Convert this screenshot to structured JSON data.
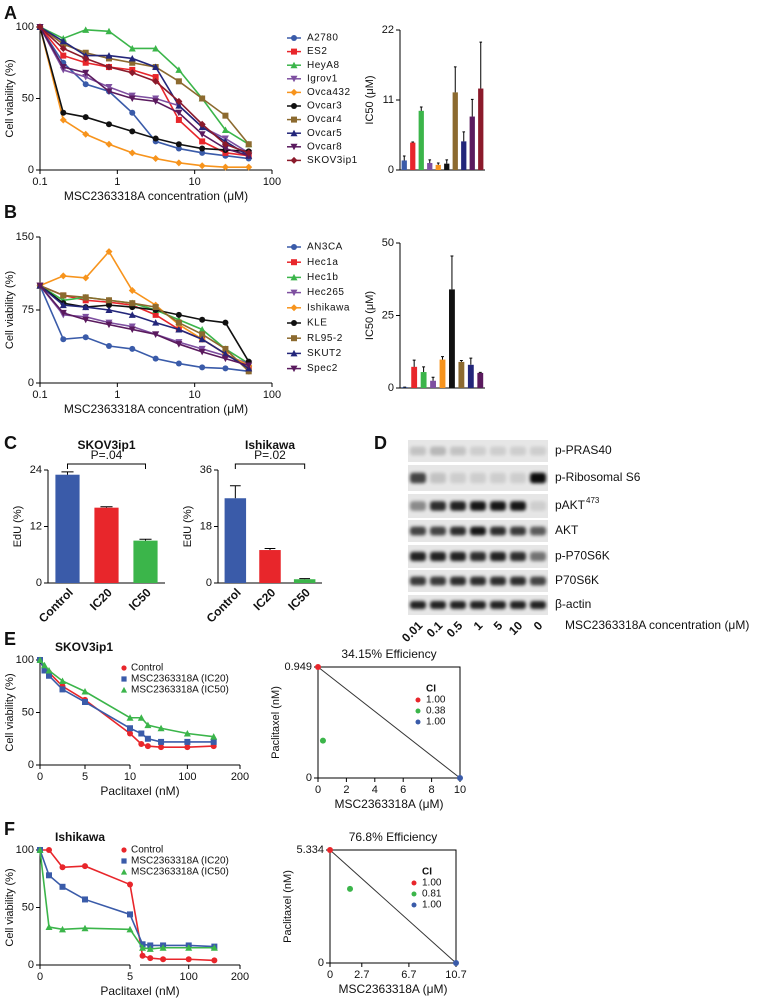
{
  "panel_labels": [
    "A",
    "B",
    "C",
    "D",
    "E",
    "F"
  ],
  "chart_data": [
    {
      "type": "line",
      "xscale": "log",
      "xlabel": "MSC2363318A concentration (μM)",
      "ylabel": "Cell viability (%)",
      "xlim": [
        0.1,
        100
      ],
      "xticks": [
        0.1,
        1,
        10,
        100
      ],
      "ylim": [
        0,
        100
      ],
      "yticks": [
        0,
        50,
        100
      ],
      "legend": "right",
      "x": [
        0.1,
        0.2,
        0.39,
        0.78,
        1.56,
        3.13,
        6.25,
        12.5,
        25,
        50
      ],
      "series": [
        {
          "name": "A2780",
          "color": "#3a5ba9",
          "marker": "circle",
          "values": [
            100,
            75,
            60,
            55,
            40,
            20,
            15,
            12,
            10,
            8
          ]
        },
        {
          "name": "ES2",
          "color": "#e8262b",
          "marker": "square",
          "values": [
            100,
            80,
            75,
            72,
            70,
            65,
            35,
            20,
            12,
            10
          ]
        },
        {
          "name": "HeyA8",
          "color": "#3bb54a",
          "marker": "triangle",
          "values": [
            100,
            92,
            98,
            97,
            85,
            85,
            70,
            50,
            28,
            18
          ]
        },
        {
          "name": "Igrov1",
          "color": "#7e4fa0",
          "marker": "triangle-down",
          "values": [
            100,
            70,
            65,
            58,
            52,
            50,
            45,
            30,
            22,
            12
          ]
        },
        {
          "name": "Ovca432",
          "color": "#f7941d",
          "marker": "diamond",
          "values": [
            100,
            35,
            25,
            18,
            12,
            8,
            5,
            3,
            2,
            2
          ]
        },
        {
          "name": "Ovcar3",
          "color": "#111111",
          "marker": "circle",
          "values": [
            100,
            40,
            37,
            32,
            27,
            22,
            18,
            15,
            14,
            13
          ]
        },
        {
          "name": "Ovcar4",
          "color": "#8c6a2f",
          "marker": "square",
          "values": [
            100,
            88,
            82,
            78,
            75,
            72,
            62,
            50,
            38,
            18
          ]
        },
        {
          "name": "Ovcar5",
          "color": "#23267a",
          "marker": "triangle",
          "values": [
            100,
            90,
            80,
            80,
            78,
            72,
            45,
            30,
            20,
            10
          ]
        },
        {
          "name": "Ovcar8",
          "color": "#5a1a5e",
          "marker": "triangle-down",
          "values": [
            100,
            72,
            68,
            55,
            50,
            48,
            40,
            25,
            15,
            10
          ]
        },
        {
          "name": "SKOV3ip1",
          "color": "#8b1a2b",
          "marker": "diamond",
          "values": [
            100,
            85,
            78,
            72,
            68,
            62,
            48,
            32,
            18,
            12
          ]
        }
      ]
    },
    {
      "type": "bar",
      "ylabel": "IC50 (μM)",
      "ylim": [
        0,
        22
      ],
      "yticks": [
        0,
        11,
        22
      ],
      "values": [
        1.5,
        4.3,
        9.3,
        1.1,
        0.8,
        1.0,
        12.2,
        4.5,
        8.4,
        12.8
      ],
      "errors": [
        0.7,
        0.1,
        0.6,
        0.5,
        0.3,
        0.6,
        4,
        1.5,
        2.7,
        7.3
      ],
      "colors": [
        "#3a5ba9",
        "#e8262b",
        "#3bb54a",
        "#7e4fa0",
        "#f7941d",
        "#111111",
        "#8c6a2f",
        "#23267a",
        "#5a1a5e",
        "#8b1a2b"
      ]
    },
    {
      "type": "line",
      "xscale": "log",
      "xlabel": "MSC2363318A concentration (μM)",
      "ylabel": "Cell viability (%)",
      "xlim": [
        0.1,
        100
      ],
      "xticks": [
        0.1,
        1,
        10,
        100
      ],
      "ylim": [
        0,
        150
      ],
      "yticks": [
        0,
        75,
        150
      ],
      "legend": "right",
      "x": [
        0.1,
        0.2,
        0.39,
        0.78,
        1.56,
        3.13,
        6.25,
        12.5,
        25,
        50
      ],
      "series": [
        {
          "name": "AN3CA",
          "color": "#3a5ba9",
          "marker": "circle",
          "values": [
            100,
            45,
            47,
            38,
            35,
            25,
            20,
            16,
            15,
            12
          ]
        },
        {
          "name": "Hec1a",
          "color": "#e8262b",
          "marker": "square",
          "values": [
            100,
            90,
            85,
            83,
            80,
            70,
            55,
            45,
            30,
            15
          ]
        },
        {
          "name": "Hec1b",
          "color": "#3bb54a",
          "marker": "triangle",
          "values": [
            100,
            85,
            88,
            85,
            82,
            75,
            65,
            55,
            35,
            20
          ]
        },
        {
          "name": "Hec265",
          "color": "#7e4fa0",
          "marker": "triangle-down",
          "values": [
            100,
            70,
            68,
            62,
            58,
            50,
            42,
            35,
            28,
            20
          ]
        },
        {
          "name": "Ishikawa",
          "color": "#f7941d",
          "marker": "diamond",
          "values": [
            100,
            110,
            108,
            135,
            95,
            80,
            60,
            45,
            30,
            18
          ]
        },
        {
          "name": "KLE",
          "color": "#111111",
          "marker": "circle",
          "values": [
            100,
            82,
            78,
            80,
            78,
            75,
            70,
            65,
            62,
            22
          ]
        },
        {
          "name": "RL95-2",
          "color": "#8c6a2f",
          "marker": "square",
          "values": [
            100,
            90,
            88,
            85,
            82,
            78,
            62,
            50,
            35,
            12
          ]
        },
        {
          "name": "SKUT2",
          "color": "#23267a",
          "marker": "triangle",
          "values": [
            100,
            80,
            78,
            75,
            70,
            62,
            55,
            45,
            30,
            15
          ]
        },
        {
          "name": "Spec2",
          "color": "#5a1a5e",
          "marker": "triangle-down",
          "values": [
            100,
            72,
            65,
            60,
            55,
            50,
            40,
            32,
            25,
            18
          ]
        }
      ]
    },
    {
      "type": "bar",
      "ylabel": "IC50 (μM)",
      "ylim": [
        0,
        50
      ],
      "yticks": [
        0,
        25,
        50
      ],
      "values": [
        0.3,
        7.3,
        5.5,
        2.5,
        9.8,
        34,
        9,
        8,
        5.2
      ],
      "errors": [
        0,
        2.3,
        1.8,
        1.2,
        1,
        11.5,
        0.5,
        2.3,
        0.2
      ],
      "colors": [
        "#3a5ba9",
        "#e8262b",
        "#3bb54a",
        "#7e4fa0",
        "#f7941d",
        "#111111",
        "#8c6a2f",
        "#23267a",
        "#5a1a5e"
      ]
    },
    {
      "type": "bar",
      "title": "SKOV3ip1",
      "ylabel": "EdU (%)",
      "ylim": [
        0,
        24
      ],
      "yticks": [
        0,
        12,
        24
      ],
      "categories": [
        "Control",
        "IC20",
        "IC50"
      ],
      "values": [
        23,
        16,
        9
      ],
      "errors": [
        0.6,
        0.2,
        0.3
      ],
      "colors": [
        "#3a5ba9",
        "#e8262b",
        "#3bb54a"
      ],
      "annotation": "P=.04"
    },
    {
      "type": "bar",
      "title": "Ishikawa",
      "ylabel": "EdU (%)",
      "ylim": [
        0,
        36
      ],
      "yticks": [
        0,
        18,
        36
      ],
      "categories": [
        "Control",
        "IC20",
        "IC50"
      ],
      "values": [
        27,
        10.5,
        1.2
      ],
      "errors": [
        4,
        0.5,
        0.2
      ],
      "colors": [
        "#3a5ba9",
        "#e8262b",
        "#3bb54a"
      ],
      "annotation": "P=.02"
    },
    {
      "type": "line",
      "title": "SKOV3ip1",
      "xlabel": "Paclitaxel (nM)",
      "ylabel": "Cell viability (%)",
      "xlim": [
        0,
        200
      ],
      "xbreak": 10,
      "xticks": [
        0,
        5,
        10,
        100,
        200
      ],
      "ylim": [
        0,
        100
      ],
      "yticks": [
        0,
        50,
        100
      ],
      "legend": "top-right",
      "x": [
        0,
        0.5,
        1,
        2.5,
        5,
        10,
        12.5,
        25,
        50,
        100,
        150
      ],
      "series": [
        {
          "name": "Control",
          "color": "#e8262b",
          "marker": "circle",
          "values": [
            100,
            90,
            88,
            75,
            62,
            30,
            20,
            18,
            17,
            17,
            18
          ]
        },
        {
          "name": "MSC2363318A (IC20)",
          "color": "#3a5ba9",
          "marker": "square",
          "values": [
            100,
            90,
            85,
            72,
            60,
            35,
            30,
            25,
            22,
            22,
            22
          ]
        },
        {
          "name": "MSC2363318A (IC50)",
          "color": "#3bb54a",
          "marker": "triangle",
          "values": [
            100,
            95,
            90,
            80,
            70,
            45,
            45,
            38,
            35,
            30,
            27
          ]
        }
      ]
    },
    {
      "type": "scatter",
      "title": "34.15% Efficiency",
      "xlabel": "MSC2363318A (μM)",
      "ylabel": "Paclitaxel (nM)",
      "xlim": [
        0,
        10
      ],
      "xticks": [
        0,
        2,
        4,
        6,
        8,
        10
      ],
      "ylim": [
        0,
        0.949
      ],
      "yticks": [
        0,
        0.949
      ],
      "x": [
        0,
        0.35,
        10
      ],
      "values": [
        0.949,
        0.32,
        0
      ],
      "colors": [
        "#e8262b",
        "#3bb54a",
        "#3a5ba9"
      ],
      "ci": {
        "title": "CI",
        "values": [
          1,
          0.38,
          1
        ],
        "value_labels": [
          "1.00",
          "0.38",
          "1.00"
        ]
      }
    },
    {
      "type": "line",
      "title": "Ishikawa",
      "xlabel": "Paclitaxel (nM)",
      "ylabel": "Cell viability (%)",
      "xlim": [
        0,
        200
      ],
      "xbreak": 5,
      "xticks": [
        0,
        5,
        100,
        200
      ],
      "ylim": [
        0,
        100
      ],
      "yticks": [
        0,
        50,
        100
      ],
      "legend": "top-right",
      "x": [
        0,
        0.5,
        1.25,
        2.5,
        5,
        10,
        25,
        50,
        100,
        150
      ],
      "series": [
        {
          "name": "Control",
          "color": "#e8262b",
          "marker": "circle",
          "values": [
            100,
            100,
            85,
            86,
            70,
            8,
            6,
            5,
            5,
            4
          ]
        },
        {
          "name": "MSC2363318A (IC20)",
          "color": "#3a5ba9",
          "marker": "square",
          "values": [
            100,
            78,
            68,
            57,
            44,
            18,
            17,
            17,
            17,
            16
          ]
        },
        {
          "name": "MSC2363318A (IC50)",
          "color": "#3bb54a",
          "marker": "triangle",
          "values": [
            100,
            33,
            31,
            32,
            31,
            15,
            14,
            15,
            15,
            15
          ]
        }
      ]
    },
    {
      "type": "scatter",
      "title": "76.8% Efficiency",
      "xlabel": "MSC2363318A (μM)",
      "ylabel": "Paclitaxel (nM)",
      "xlim": [
        0,
        10.7
      ],
      "xticks": [
        0,
        2.7,
        6.7,
        10.7
      ],
      "ylim": [
        0,
        5.334
      ],
      "yticks": [
        0,
        5.334
      ],
      "x": [
        0,
        1.7,
        10.7
      ],
      "values": [
        5.334,
        3.5,
        0
      ],
      "colors": [
        "#e8262b",
        "#3bb54a",
        "#3a5ba9"
      ],
      "ci": {
        "title": "CI",
        "values": [
          1,
          0.81,
          1
        ],
        "value_labels": [
          "1.00",
          "0.81",
          "1.00"
        ]
      }
    }
  ],
  "blot": {
    "rows": [
      {
        "label": "p-PRAS40"
      },
      {
        "label": "p-Ribosomal S6"
      },
      {
        "label": "pAKT",
        "sup": "473"
      },
      {
        "label": "AKT"
      },
      {
        "label": "p-P70S6K"
      },
      {
        "label": "P70S6K"
      },
      {
        "label": "β-actin"
      }
    ],
    "lanes": [
      "0.01",
      "0.1",
      "0.5",
      "1",
      "5",
      "10",
      "0"
    ],
    "xlabel": "MSC2363318A concentration (μM)"
  }
}
